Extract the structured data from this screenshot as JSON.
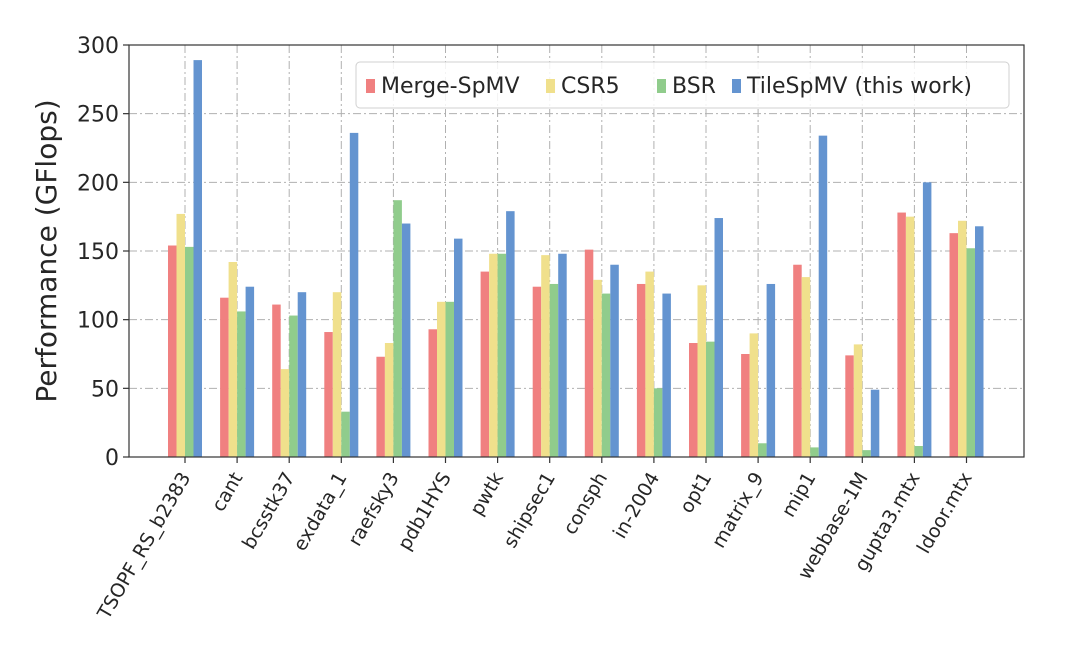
{
  "chart_data": {
    "type": "bar",
    "title": "",
    "xlabel": "",
    "ylabel": "Performance (GFlops)",
    "ylim": [
      0,
      300
    ],
    "yticks": [
      "0",
      "50",
      "100",
      "150",
      "200",
      "250",
      "300"
    ],
    "grid": true,
    "legend_position": "top-right",
    "categories": [
      "TSOPF_RS_b2383",
      "cant",
      "bcsstk37",
      "exdata_1",
      "raefsky3",
      "pdb1HYS",
      "pwtk",
      "shipsec1",
      "consph",
      "in-2004",
      "opt1",
      "matrix_9",
      "mip1",
      "webbase-1M",
      "gupta3.mtx",
      "ldoor.mtx"
    ],
    "series": [
      {
        "name": "Merge-SpMV",
        "color": "#f08080",
        "values": [
          154,
          116,
          111,
          91,
          73,
          93,
          135,
          124,
          151,
          126,
          83,
          75,
          140,
          74,
          178,
          163
        ]
      },
      {
        "name": "CSR5",
        "color": "#f0e08c",
        "values": [
          177,
          142,
          64,
          120,
          83,
          113,
          148,
          147,
          129,
          135,
          125,
          90,
          131,
          82,
          175,
          172
        ]
      },
      {
        "name": "BSR",
        "color": "#90cc8c",
        "values": [
          153,
          106,
          103,
          33,
          187,
          113,
          148,
          126,
          119,
          50,
          84,
          10,
          7,
          5,
          8,
          152
        ]
      },
      {
        "name": "TileSpMV (this work)",
        "color": "#6494d0",
        "values": [
          289,
          124,
          120,
          236,
          170,
          159,
          179,
          148,
          140,
          119,
          174,
          126,
          234,
          49,
          200,
          168
        ]
      }
    ]
  }
}
